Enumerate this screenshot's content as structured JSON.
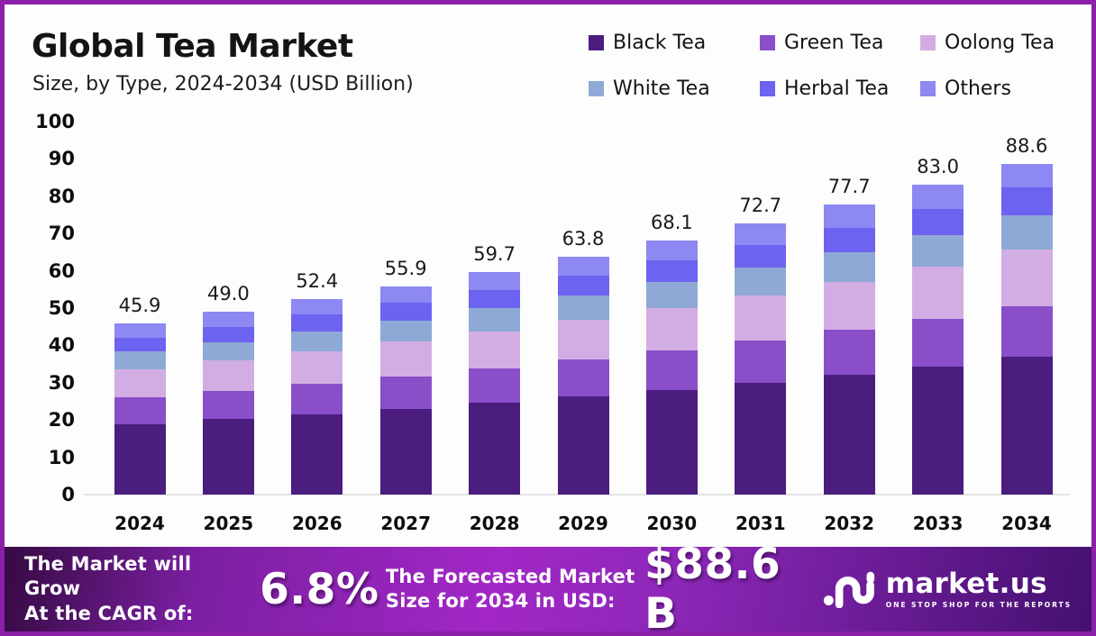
{
  "header": {
    "title": "Global Tea Market",
    "subtitle": "Size, by Type, 2024-2034 (USD Billion)"
  },
  "chart_data": {
    "type": "bar",
    "stacked": true,
    "title": "Global Tea Market Size, by Type, 2024-2034 (USD Billion)",
    "xlabel": "",
    "ylabel": "",
    "ylim": [
      0,
      100
    ],
    "yticks": [
      0,
      10,
      20,
      30,
      40,
      50,
      60,
      70,
      80,
      90,
      100
    ],
    "grid": false,
    "legend_position": "top-right",
    "categories": [
      "2024",
      "2025",
      "2026",
      "2027",
      "2028",
      "2029",
      "2030",
      "2031",
      "2032",
      "2033",
      "2034"
    ],
    "series": [
      {
        "name": "Black Tea",
        "color": "#4a1d7f",
        "values": [
          18.9,
          20.2,
          21.6,
          23.0,
          24.6,
          26.3,
          28.1,
          30.0,
          32.1,
          34.3,
          37.0
        ]
      },
      {
        "name": "Green Tea",
        "color": "#8a4ec9",
        "values": [
          7.1,
          7.6,
          8.1,
          8.7,
          9.3,
          9.9,
          10.6,
          11.3,
          12.1,
          12.9,
          13.5
        ]
      },
      {
        "name": "Oolong Tea",
        "color": "#d2ade4",
        "values": [
          7.6,
          8.1,
          8.7,
          9.3,
          9.9,
          10.6,
          11.3,
          12.1,
          12.9,
          13.8,
          15.2
        ]
      },
      {
        "name": "White Tea",
        "color": "#8fa9d6",
        "values": [
          4.7,
          5.0,
          5.4,
          5.7,
          6.1,
          6.5,
          7.0,
          7.4,
          7.9,
          8.5,
          9.1
        ]
      },
      {
        "name": "Herbal Tea",
        "color": "#6c63f0",
        "values": [
          3.8,
          4.1,
          4.4,
          4.7,
          5.0,
          5.4,
          5.7,
          6.1,
          6.5,
          7.0,
          7.5
        ]
      },
      {
        "name": "Others",
        "color": "#8d88f2",
        "values": [
          3.8,
          4.0,
          4.2,
          4.5,
          4.8,
          5.1,
          5.4,
          5.8,
          6.2,
          6.5,
          6.3
        ]
      }
    ],
    "totals": [
      "45.9",
      "49.0",
      "52.4",
      "55.9",
      "59.7",
      "63.8",
      "68.1",
      "72.7",
      "77.7",
      "83.0",
      "88.6"
    ]
  },
  "banner": {
    "cagr_label_line1": "The Market will Grow",
    "cagr_label_line2": "At the CAGR of:",
    "cagr_value": "6.8%",
    "forecast_label_line1": "The Forecasted Market",
    "forecast_label_line2": "Size for 2034 in USD:",
    "forecast_value": "$88.6 B",
    "brand_name": "market.us",
    "brand_tagline": "ONE STOP SHOP FOR THE REPORTS"
  },
  "colors": {
    "frame_border": "#8b1fa8",
    "banner_gradient_left": "#350a42",
    "banner_gradient_mid": "#a227c6",
    "banner_gradient_right": "#451070",
    "axis_text": "#0d0d0d",
    "baseline": "#e3e3e6"
  }
}
